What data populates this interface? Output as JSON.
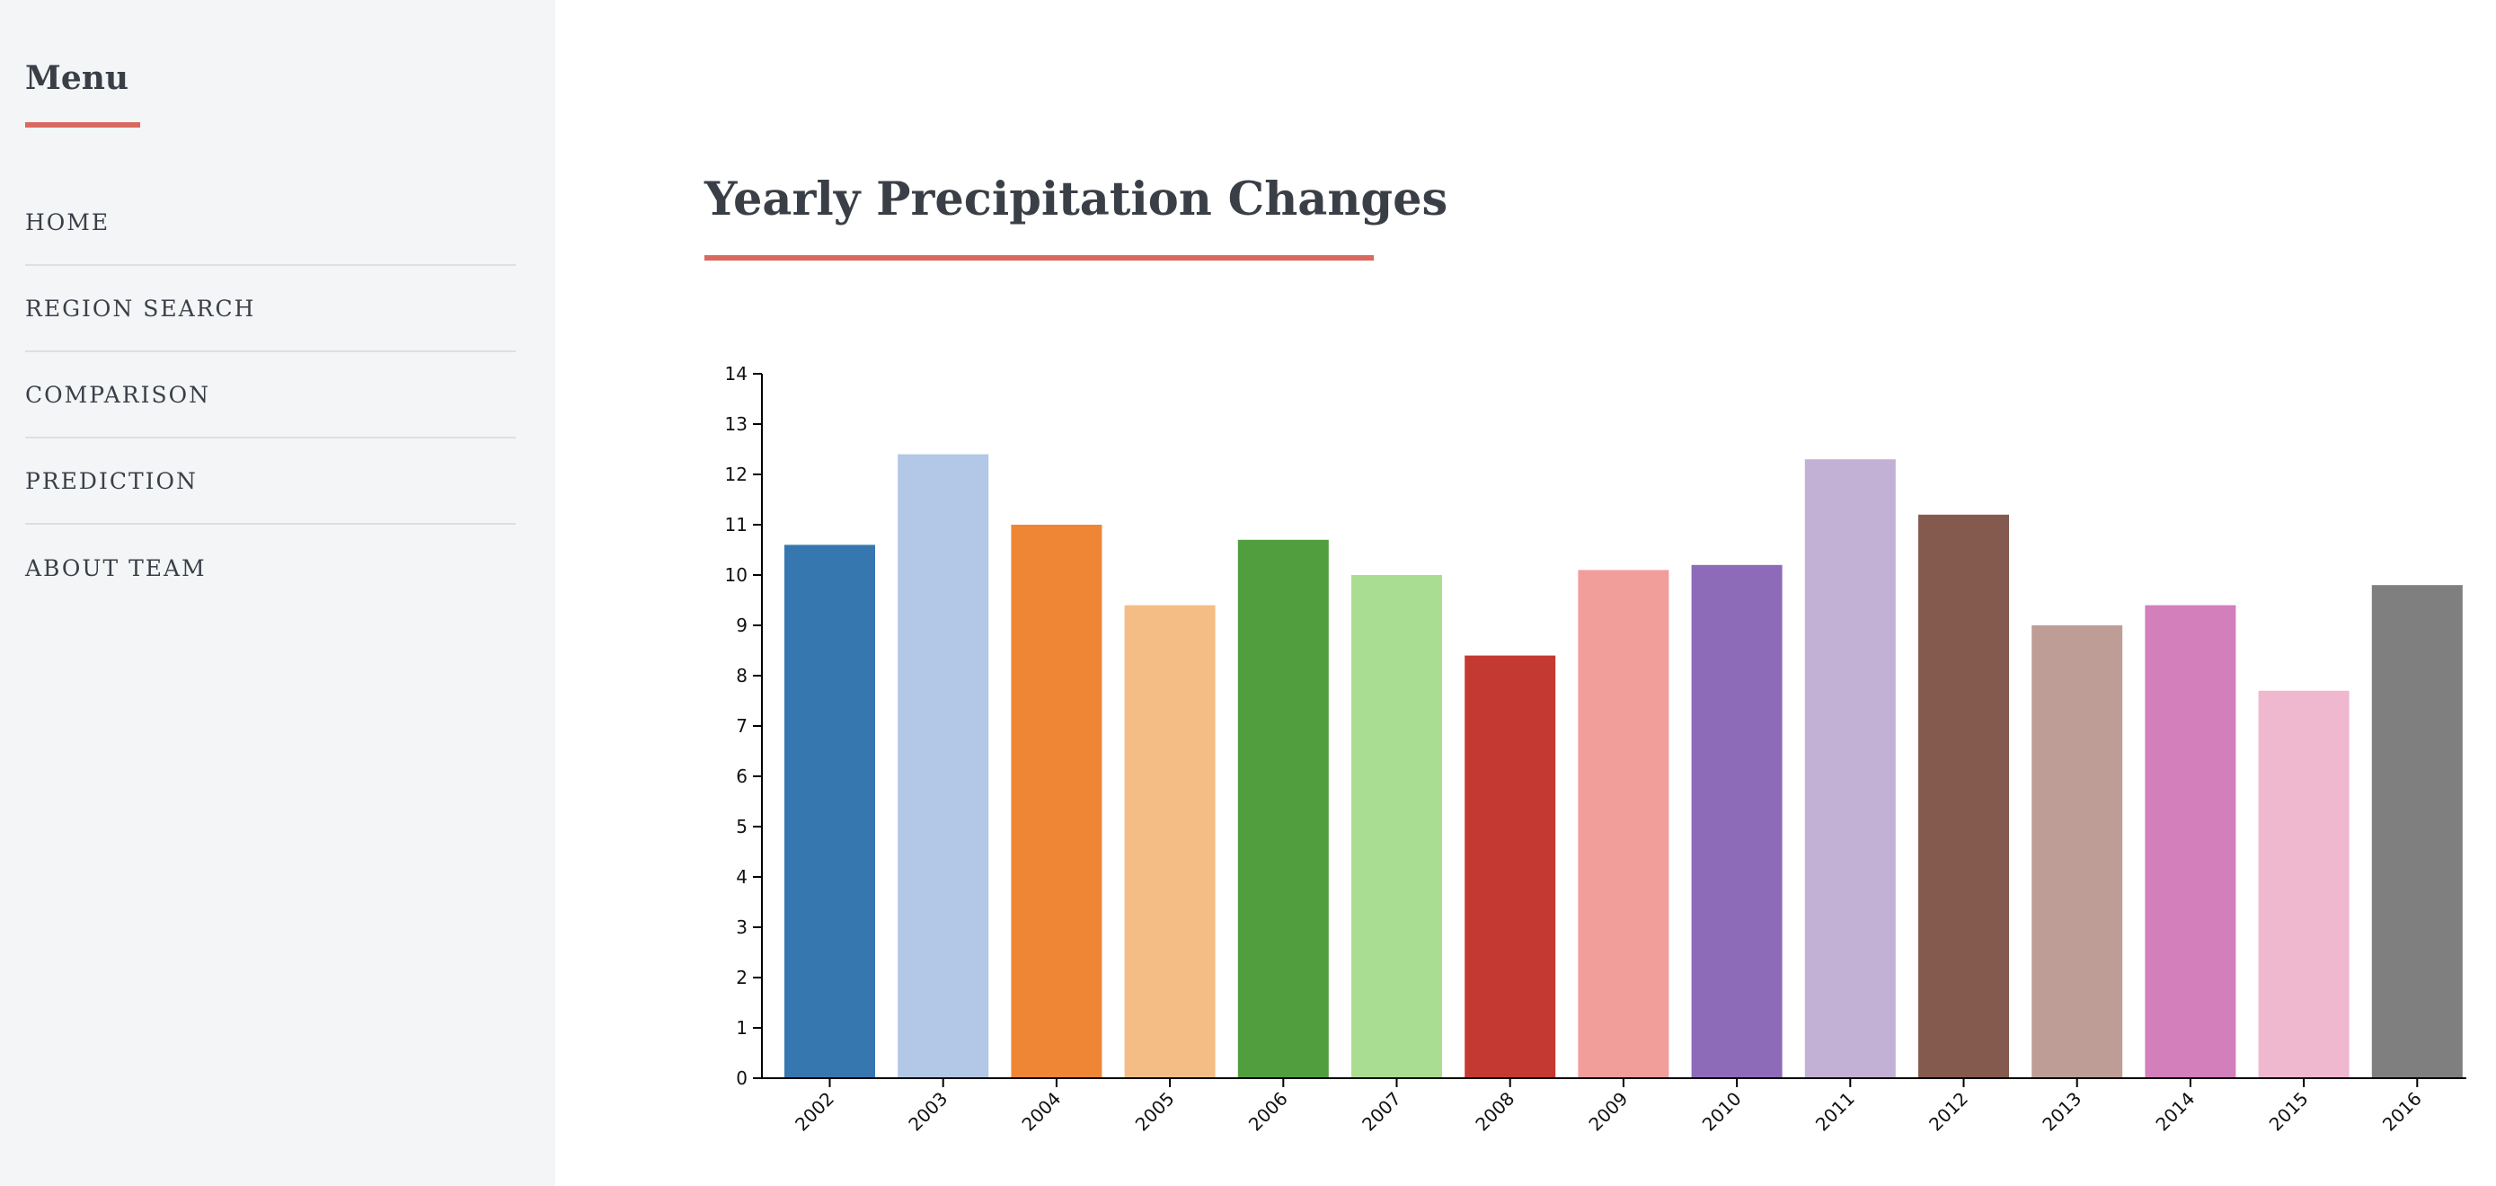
{
  "sidebar": {
    "title": "Menu",
    "items": [
      {
        "label": "HOME"
      },
      {
        "label": "REGION SEARCH"
      },
      {
        "label": "COMPARISON"
      },
      {
        "label": "PREDICTION"
      },
      {
        "label": "ABOUT TEAM"
      }
    ]
  },
  "main": {
    "title": "Yearly Precipitation Changes"
  },
  "colors": {
    "accent": "#d9695f",
    "sidebar_bg": "#f4f5f7"
  },
  "chart_data": {
    "type": "bar",
    "title": "",
    "xlabel": "",
    "ylabel": "",
    "ylim": [
      0,
      14
    ],
    "yticks": [
      0,
      1,
      2,
      3,
      4,
      5,
      6,
      7,
      8,
      9,
      10,
      11,
      12,
      13,
      14
    ],
    "categories": [
      "2002",
      "2003",
      "2004",
      "2005",
      "2006",
      "2007",
      "2008",
      "2009",
      "2010",
      "2011",
      "2012",
      "2013",
      "2014",
      "2015",
      "2016"
    ],
    "values": [
      10.6,
      12.4,
      11.0,
      9.4,
      10.7,
      10.0,
      8.4,
      10.1,
      10.2,
      12.3,
      11.2,
      9.0,
      9.4,
      7.7,
      9.8
    ],
    "colors": [
      "#3777b0",
      "#b3c7e6",
      "#ef8636",
      "#f4bd85",
      "#519e3e",
      "#a9dd92",
      "#c43932",
      "#f19e9b",
      "#8e6bb9",
      "#c2b1d4",
      "#845a4f",
      "#be9d96",
      "#d37fbc",
      "#efb8ce",
      "#7f7f7f"
    ],
    "grid": false,
    "legend": "none"
  }
}
